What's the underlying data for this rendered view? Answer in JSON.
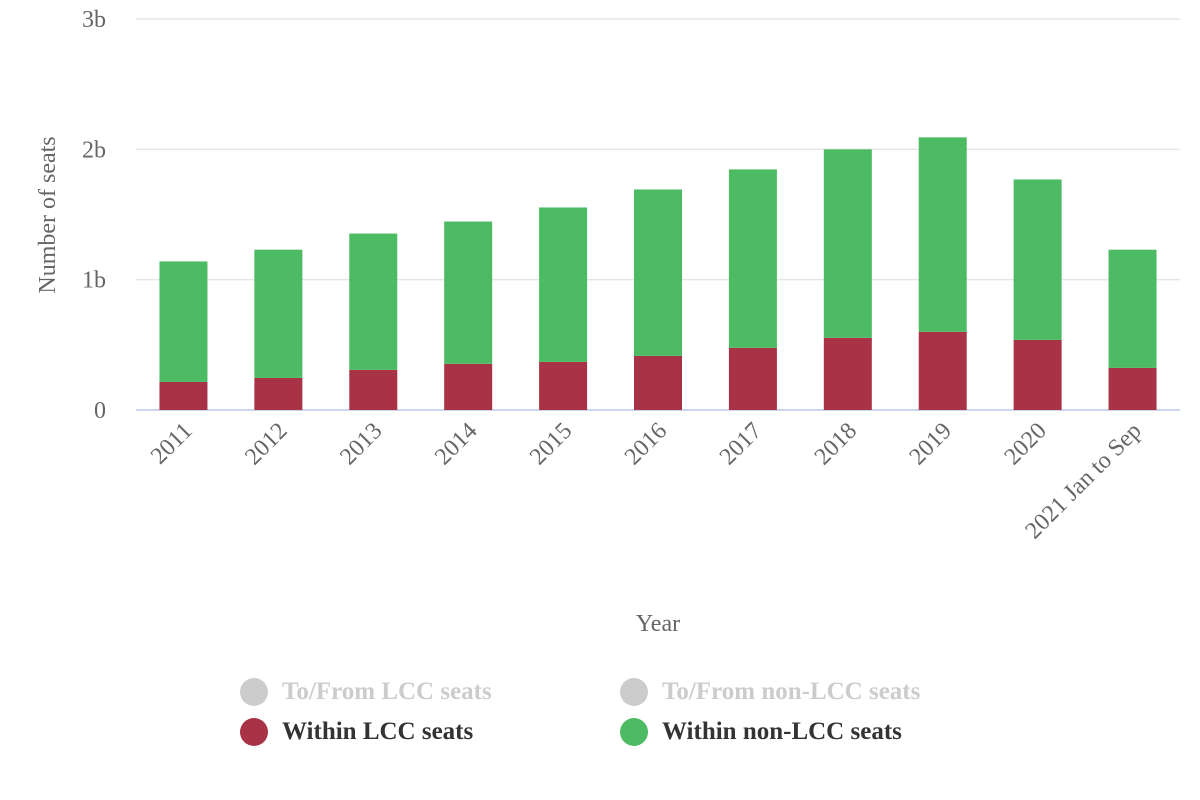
{
  "chart_data": {
    "type": "bar",
    "stacked": true,
    "title": "",
    "xlabel": "Year",
    "ylabel": "Number of seats",
    "ylim": [
      0,
      3000000000
    ],
    "yticks": [
      {
        "value": 0,
        "label": "0"
      },
      {
        "value": 1000000000,
        "label": "1b"
      },
      {
        "value": 2000000000,
        "label": "2b"
      },
      {
        "value": 3000000000,
        "label": "3b"
      }
    ],
    "grid": true,
    "categories": [
      "2011",
      "2012",
      "2013",
      "2014",
      "2015",
      "2016",
      "2017",
      "2018",
      "2019",
      "2020",
      "2021 Jan to Sep"
    ],
    "series": [
      {
        "name": "Within LCC seats",
        "color": "#a83246",
        "values": [
          215000000,
          246000000,
          308000000,
          354000000,
          369000000,
          415000000,
          477000000,
          554000000,
          600000000,
          538000000,
          323000000
        ]
      },
      {
        "name": "Within non-LCC seats",
        "color": "#4cbb63",
        "values": [
          925000000,
          984000000,
          1046000000,
          1092000000,
          1185000000,
          1277000000,
          1369000000,
          1446000000,
          1492000000,
          1231000000,
          907000000
        ]
      }
    ],
    "legend": {
      "position": "bottom",
      "items": [
        {
          "name": "To/From LCC seats",
          "color": "#cccccc",
          "visible": false
        },
        {
          "name": "To/From non-LCC seats",
          "color": "#cccccc",
          "visible": false
        },
        {
          "name": "Within LCC seats",
          "color": "#a83246",
          "visible": true
        },
        {
          "name": "Within non-LCC seats",
          "color": "#4cbb63",
          "visible": true
        }
      ]
    },
    "colors": {
      "gridline": "#e6e6e6",
      "baseline": "#ccd6eb",
      "tick_text": "#666666"
    }
  }
}
